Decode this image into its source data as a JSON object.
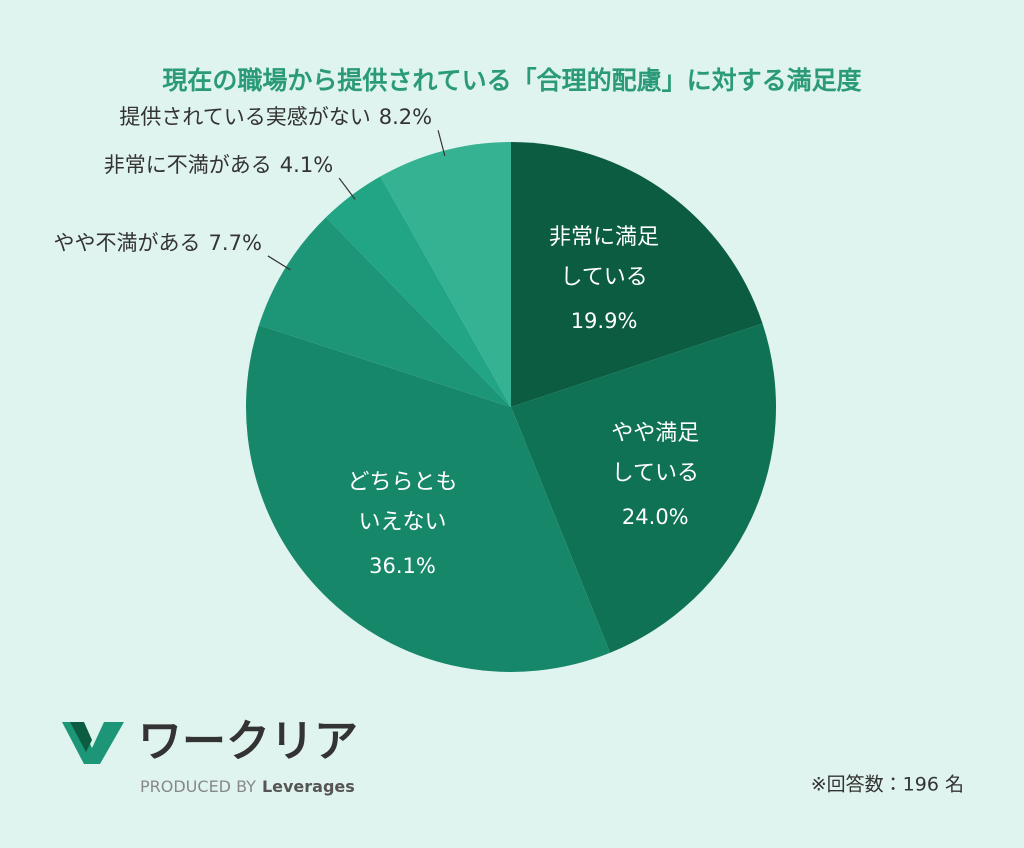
{
  "chart_data": {
    "type": "pie",
    "title": "現在の職場から提供されている「合理的配慮」に対する満足度",
    "categories": [
      [
        "非常に満足",
        "している"
      ],
      [
        "やや満足",
        "している"
      ],
      [
        "どちらとも",
        "いえない"
      ],
      [
        "やや不満がある"
      ],
      [
        "非常に不満がある"
      ],
      [
        "提供されている実感がない"
      ]
    ],
    "values": [
      19.9,
      24.0,
      36.1,
      7.7,
      4.1,
      8.2
    ],
    "value_labels": [
      "19.9%",
      "24.0%",
      "36.1%",
      "7.7%",
      "4.1%",
      "8.2%"
    ],
    "colors": [
      "#0b5c40",
      "#107255",
      "#17876a",
      "#1c9677",
      "#21a585",
      "#35b292"
    ],
    "note": "※回答数：196 名"
  },
  "logo": {
    "name": "ワークリア",
    "produced_by": "PRODUCED BY",
    "company": "Leverages"
  }
}
